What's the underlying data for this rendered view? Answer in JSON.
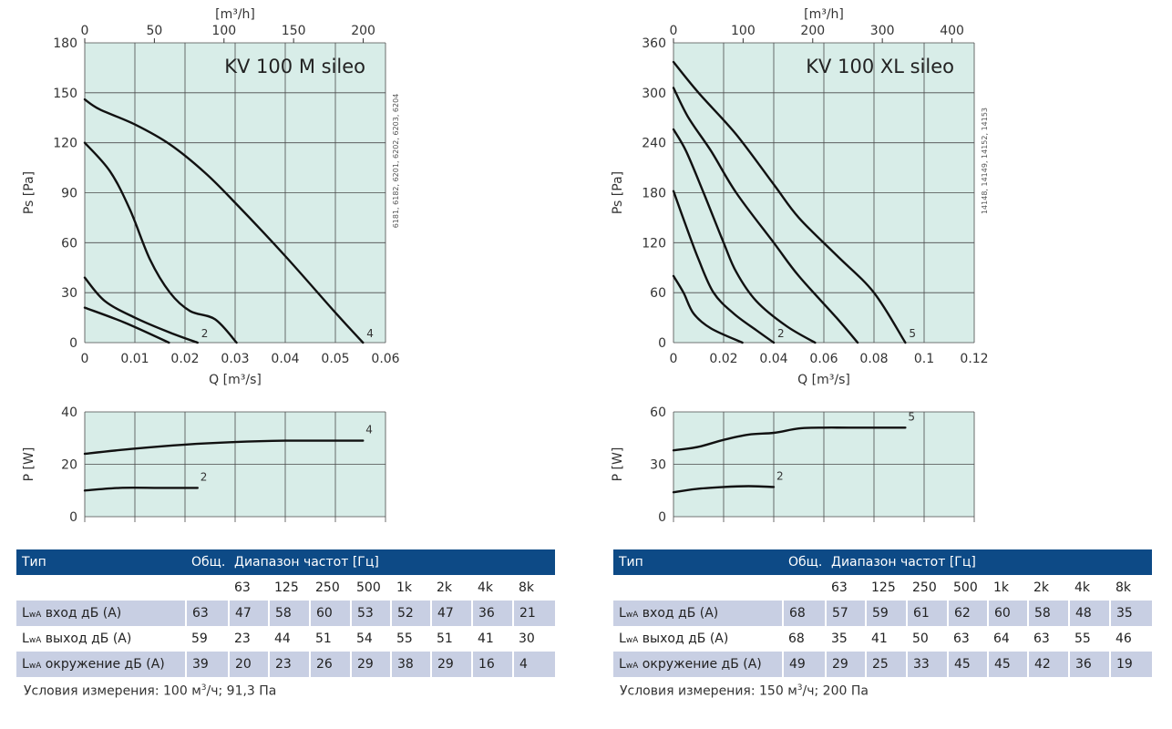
{
  "colors": {
    "plot_bg": "#d8ede8",
    "grid": "#4a4a4a",
    "curve": "#111111",
    "table_header": "#0d4a86",
    "table_row": "#c8cfe3"
  },
  "panels": [
    {
      "side_code": "6181, 6182, 6201, 6202, 6203, 6204",
      "pressure_chart": {
        "type": "line",
        "title": "KV 100 M sileo",
        "xlabel": "Q [m³/s]",
        "ylabel": "Ps [Pa]",
        "top_axis_label": "[m³/h]",
        "x_ticks": [
          0,
          0.01,
          0.02,
          0.03,
          0.04,
          0.05,
          0.06
        ],
        "x_tick_labels": [
          "0",
          "0.01",
          "0.02",
          "0.03",
          "0.04",
          "0.05",
          "0.06"
        ],
        "y_ticks": [
          0,
          30,
          60,
          90,
          120,
          150,
          180
        ],
        "top_ticks": [
          0,
          50,
          100,
          150,
          200
        ],
        "xlim": [
          0,
          0.06
        ],
        "ylim": [
          0,
          180
        ],
        "series": [
          {
            "name": "",
            "label": "",
            "points": [
              [
                0,
                21
              ],
              [
                0.008,
                12
              ],
              [
                0.0168,
                0
              ]
            ]
          },
          {
            "name": "",
            "label": "2",
            "points": [
              [
                0,
                39
              ],
              [
                0.004,
                25
              ],
              [
                0.01,
                15
              ],
              [
                0.017,
                6
              ],
              [
                0.0225,
                0
              ]
            ]
          },
          {
            "name": "",
            "label": "",
            "points": [
              [
                0,
                120
              ],
              [
                0.005,
                103
              ],
              [
                0.009,
                80
              ],
              [
                0.013,
                50
              ],
              [
                0.017,
                30
              ],
              [
                0.021,
                19
              ],
              [
                0.026,
                14
              ],
              [
                0.0303,
                0
              ]
            ]
          },
          {
            "name": "",
            "label": "4",
            "points": [
              [
                0,
                146
              ],
              [
                0.003,
                140
              ],
              [
                0.01,
                131
              ],
              [
                0.017,
                119
              ],
              [
                0.024,
                102
              ],
              [
                0.03,
                84
              ],
              [
                0.04,
                52
              ],
              [
                0.05,
                18
              ],
              [
                0.0555,
                0
              ]
            ]
          }
        ]
      },
      "power_chart": {
        "type": "line",
        "ylabel": "P [W]",
        "y_ticks": [
          0,
          20,
          40
        ],
        "xlim": [
          0,
          0.06
        ],
        "ylim": [
          0,
          40
        ],
        "series": [
          {
            "name": "",
            "label": "2",
            "points": [
              [
                0,
                10
              ],
              [
                0.007,
                11
              ],
              [
                0.015,
                11
              ],
              [
                0.0225,
                11
              ]
            ]
          },
          {
            "name": "",
            "label": "4",
            "points": [
              [
                0,
                24
              ],
              [
                0.01,
                26
              ],
              [
                0.02,
                27.5
              ],
              [
                0.03,
                28.5
              ],
              [
                0.04,
                29
              ],
              [
                0.0555,
                29
              ]
            ]
          }
        ]
      },
      "table": {
        "col_type": "Тип",
        "col_total": "Общ.",
        "col_range": "Диапазон частот [Гц]",
        "frequencies": [
          "63",
          "125",
          "250",
          "500",
          "1k",
          "2k",
          "4k",
          "8k"
        ],
        "rows": [
          {
            "lwa": "L",
            "sub": "wA",
            "label": " вход дБ (A)",
            "total": "63",
            "values": [
              "47",
              "58",
              "60",
              "53",
              "52",
              "47",
              "36",
              "21"
            ]
          },
          {
            "lwa": "L",
            "sub": "wA",
            "label": " выход дБ (A)",
            "total": "59",
            "values": [
              "23",
              "44",
              "51",
              "54",
              "55",
              "51",
              "41",
              "30"
            ]
          },
          {
            "lwa": "L",
            "sub": "wA",
            "label": " окружение дБ (A)",
            "total": "39",
            "values": [
              "20",
              "23",
              "26",
              "29",
              "38",
              "29",
              "16",
              "4"
            ]
          }
        ]
      },
      "conditions_pre": "Условия измерения: 100 м",
      "conditions_sup": "3",
      "conditions_post": "/ч; 91,3 Па"
    },
    {
      "side_code": "14148, 14149, 14152, 14153",
      "pressure_chart": {
        "type": "line",
        "title": "KV 100 XL sileo",
        "xlabel": "Q [m³/s]",
        "ylabel": "Ps [Pa]",
        "top_axis_label": "[m³/h]",
        "x_ticks": [
          0,
          0.02,
          0.04,
          0.06,
          0.08,
          0.1,
          0.12
        ],
        "x_tick_labels": [
          "0",
          "0.02",
          "0.04",
          "0.06",
          "0.08",
          "0.1",
          "0.12"
        ],
        "y_ticks": [
          0,
          60,
          120,
          180,
          240,
          300,
          360
        ],
        "top_ticks": [
          0,
          100,
          200,
          300,
          400
        ],
        "xlim": [
          0,
          0.12
        ],
        "ylim": [
          0,
          360
        ],
        "series": [
          {
            "name": "",
            "label": "",
            "points": [
              [
                0,
                80
              ],
              [
                0.004,
                60
              ],
              [
                0.008,
                35
              ],
              [
                0.015,
                17
              ],
              [
                0.0275,
                0
              ]
            ]
          },
          {
            "name": "",
            "label": "2",
            "points": [
              [
                0,
                182
              ],
              [
                0.005,
                140
              ],
              [
                0.01,
                100
              ],
              [
                0.016,
                60
              ],
              [
                0.024,
                35
              ],
              [
                0.033,
                15
              ],
              [
                0.04,
                0
              ]
            ]
          },
          {
            "name": "",
            "label": "",
            "points": [
              [
                0,
                256
              ],
              [
                0.005,
                230
              ],
              [
                0.012,
                180
              ],
              [
                0.02,
                120
              ],
              [
                0.025,
                85
              ],
              [
                0.033,
                50
              ],
              [
                0.045,
                20
              ],
              [
                0.0565,
                0
              ]
            ]
          },
          {
            "name": "",
            "label": "",
            "points": [
              [
                0,
                306
              ],
              [
                0.006,
                270
              ],
              [
                0.015,
                230
              ],
              [
                0.025,
                180
              ],
              [
                0.04,
                120
              ],
              [
                0.05,
                80
              ],
              [
                0.065,
                30
              ],
              [
                0.0735,
                0
              ]
            ]
          },
          {
            "name": "",
            "label": "5",
            "points": [
              [
                0,
                337
              ],
              [
                0.01,
                300
              ],
              [
                0.025,
                250
              ],
              [
                0.04,
                190
              ],
              [
                0.05,
                150
              ],
              [
                0.065,
                105
              ],
              [
                0.08,
                60
              ],
              [
                0.0925,
                0
              ]
            ]
          }
        ]
      },
      "power_chart": {
        "type": "line",
        "ylabel": "P [W]",
        "y_ticks": [
          0,
          30,
          60
        ],
        "xlim": [
          0,
          0.12
        ],
        "ylim": [
          0,
          60
        ],
        "series": [
          {
            "name": "",
            "label": "2",
            "points": [
              [
                0,
                14
              ],
              [
                0.01,
                16
              ],
              [
                0.02,
                17
              ],
              [
                0.03,
                17.5
              ],
              [
                0.04,
                17
              ]
            ]
          },
          {
            "name": "",
            "label": "5",
            "points": [
              [
                0,
                38
              ],
              [
                0.01,
                40
              ],
              [
                0.02,
                44
              ],
              [
                0.03,
                47
              ],
              [
                0.04,
                48
              ],
              [
                0.05,
                50.5
              ],
              [
                0.06,
                51
              ],
              [
                0.07,
                51
              ],
              [
                0.0925,
                51
              ]
            ]
          }
        ]
      },
      "table": {
        "col_type": "Тип",
        "col_total": "Общ.",
        "col_range": "Диапазон частот [Гц]",
        "frequencies": [
          "63",
          "125",
          "250",
          "500",
          "1k",
          "2k",
          "4k",
          "8k"
        ],
        "rows": [
          {
            "lwa": "L",
            "sub": "wA",
            "label": " вход дБ (A)",
            "total": "68",
            "values": [
              "57",
              "59",
              "61",
              "62",
              "60",
              "58",
              "48",
              "35"
            ]
          },
          {
            "lwa": "L",
            "sub": "wA",
            "label": " выход дБ (A)",
            "total": "68",
            "values": [
              "35",
              "41",
              "50",
              "63",
              "64",
              "63",
              "55",
              "46"
            ]
          },
          {
            "lwa": "L",
            "sub": "wA",
            "label": " окружение дБ (A)",
            "total": "49",
            "values": [
              "29",
              "25",
              "33",
              "45",
              "45",
              "42",
              "36",
              "19"
            ]
          }
        ]
      },
      "conditions_pre": "Условия измерения: 150 м",
      "conditions_sup": "3",
      "conditions_post": "/ч; 200 Па"
    }
  ]
}
